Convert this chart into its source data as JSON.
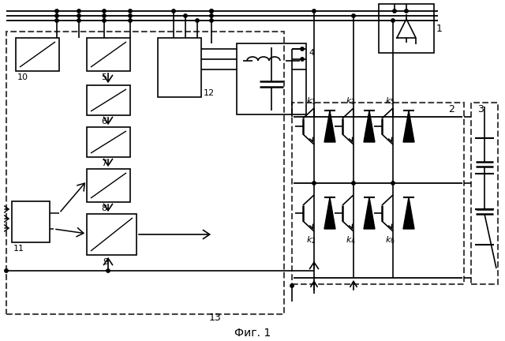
{
  "title": "Фиг. 1",
  "bg_color": "#ffffff",
  "line_color": "#000000",
  "fig_width": 6.4,
  "fig_height": 4.32,
  "dpi": 100
}
